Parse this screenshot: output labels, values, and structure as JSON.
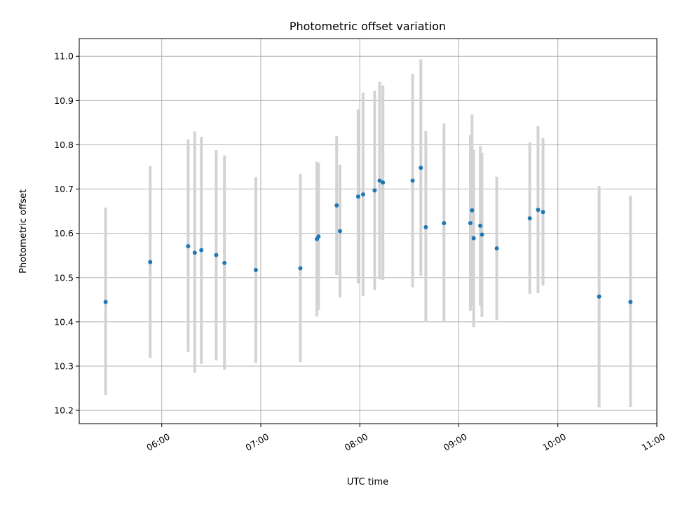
{
  "chart_data": {
    "type": "scatter",
    "title": "Photometric offset variation",
    "xlabel": "UTC time",
    "ylabel": "Photometric offset",
    "x_ticks": [
      "06:00",
      "07:00",
      "08:00",
      "09:00",
      "10:00",
      "11:00"
    ],
    "y_ticks": [
      "10.2",
      "10.3",
      "10.4",
      "10.5",
      "10.6",
      "10.7",
      "10.8",
      "10.9",
      "11.0"
    ],
    "xlim": [
      "05:10",
      "11:00"
    ],
    "ylim": [
      10.17,
      11.04
    ],
    "grid": true,
    "errorbar_color": "#d3d3d3",
    "marker_color": "#1f77b4",
    "points": [
      {
        "time": "05:26",
        "y": 10.445,
        "ylow": 10.235,
        "yhigh": 10.658
      },
      {
        "time": "05:53",
        "y": 10.535,
        "ylow": 10.318,
        "yhigh": 10.752
      },
      {
        "time": "06:16",
        "y": 10.571,
        "ylow": 10.332,
        "yhigh": 10.812
      },
      {
        "time": "06:20",
        "y": 10.556,
        "ylow": 10.285,
        "yhigh": 10.83
      },
      {
        "time": "06:24",
        "y": 10.562,
        "ylow": 10.305,
        "yhigh": 10.818
      },
      {
        "time": "06:33",
        "y": 10.551,
        "ylow": 10.313,
        "yhigh": 10.788
      },
      {
        "time": "06:38",
        "y": 10.533,
        "ylow": 10.292,
        "yhigh": 10.776
      },
      {
        "time": "06:57",
        "y": 10.517,
        "ylow": 10.307,
        "yhigh": 10.727
      },
      {
        "time": "07:24",
        "y": 10.521,
        "ylow": 10.309,
        "yhigh": 10.734
      },
      {
        "time": "07:34",
        "y": 10.587,
        "ylow": 10.412,
        "yhigh": 10.762
      },
      {
        "time": "07:35",
        "y": 10.593,
        "ylow": 10.427,
        "yhigh": 10.76
      },
      {
        "time": "07:46",
        "y": 10.663,
        "ylow": 10.506,
        "yhigh": 10.82
      },
      {
        "time": "07:48",
        "y": 10.605,
        "ylow": 10.455,
        "yhigh": 10.755
      },
      {
        "time": "07:59",
        "y": 10.683,
        "ylow": 10.487,
        "yhigh": 10.88
      },
      {
        "time": "08:02",
        "y": 10.688,
        "ylow": 10.458,
        "yhigh": 10.918
      },
      {
        "time": "08:09",
        "y": 10.697,
        "ylow": 10.472,
        "yhigh": 10.922
      },
      {
        "time": "08:12",
        "y": 10.719,
        "ylow": 10.496,
        "yhigh": 10.942
      },
      {
        "time": "08:14",
        "y": 10.715,
        "ylow": 10.495,
        "yhigh": 10.934
      },
      {
        "time": "08:32",
        "y": 10.719,
        "ylow": 10.478,
        "yhigh": 10.96
      },
      {
        "time": "08:37",
        "y": 10.748,
        "ylow": 10.504,
        "yhigh": 10.993
      },
      {
        "time": "08:40",
        "y": 10.614,
        "ylow": 10.399,
        "yhigh": 10.831
      },
      {
        "time": "08:51",
        "y": 10.623,
        "ylow": 10.4,
        "yhigh": 10.848
      },
      {
        "time": "09:07",
        "y": 10.623,
        "ylow": 10.425,
        "yhigh": 10.822
      },
      {
        "time": "09:08",
        "y": 10.652,
        "ylow": 10.437,
        "yhigh": 10.868
      },
      {
        "time": "09:09",
        "y": 10.589,
        "ylow": 10.388,
        "yhigh": 10.789
      },
      {
        "time": "09:13",
        "y": 10.617,
        "ylow": 10.437,
        "yhigh": 10.797
      },
      {
        "time": "09:14",
        "y": 10.597,
        "ylow": 10.411,
        "yhigh": 10.782
      },
      {
        "time": "09:23",
        "y": 10.566,
        "ylow": 10.404,
        "yhigh": 10.728
      },
      {
        "time": "09:43",
        "y": 10.634,
        "ylow": 10.463,
        "yhigh": 10.805
      },
      {
        "time": "09:48",
        "y": 10.653,
        "ylow": 10.465,
        "yhigh": 10.842
      },
      {
        "time": "09:51",
        "y": 10.648,
        "ylow": 10.482,
        "yhigh": 10.815
      },
      {
        "time": "10:25",
        "y": 10.457,
        "ylow": 10.207,
        "yhigh": 10.707
      },
      {
        "time": "10:44",
        "y": 10.445,
        "ylow": 10.208,
        "yhigh": 10.685
      }
    ]
  }
}
